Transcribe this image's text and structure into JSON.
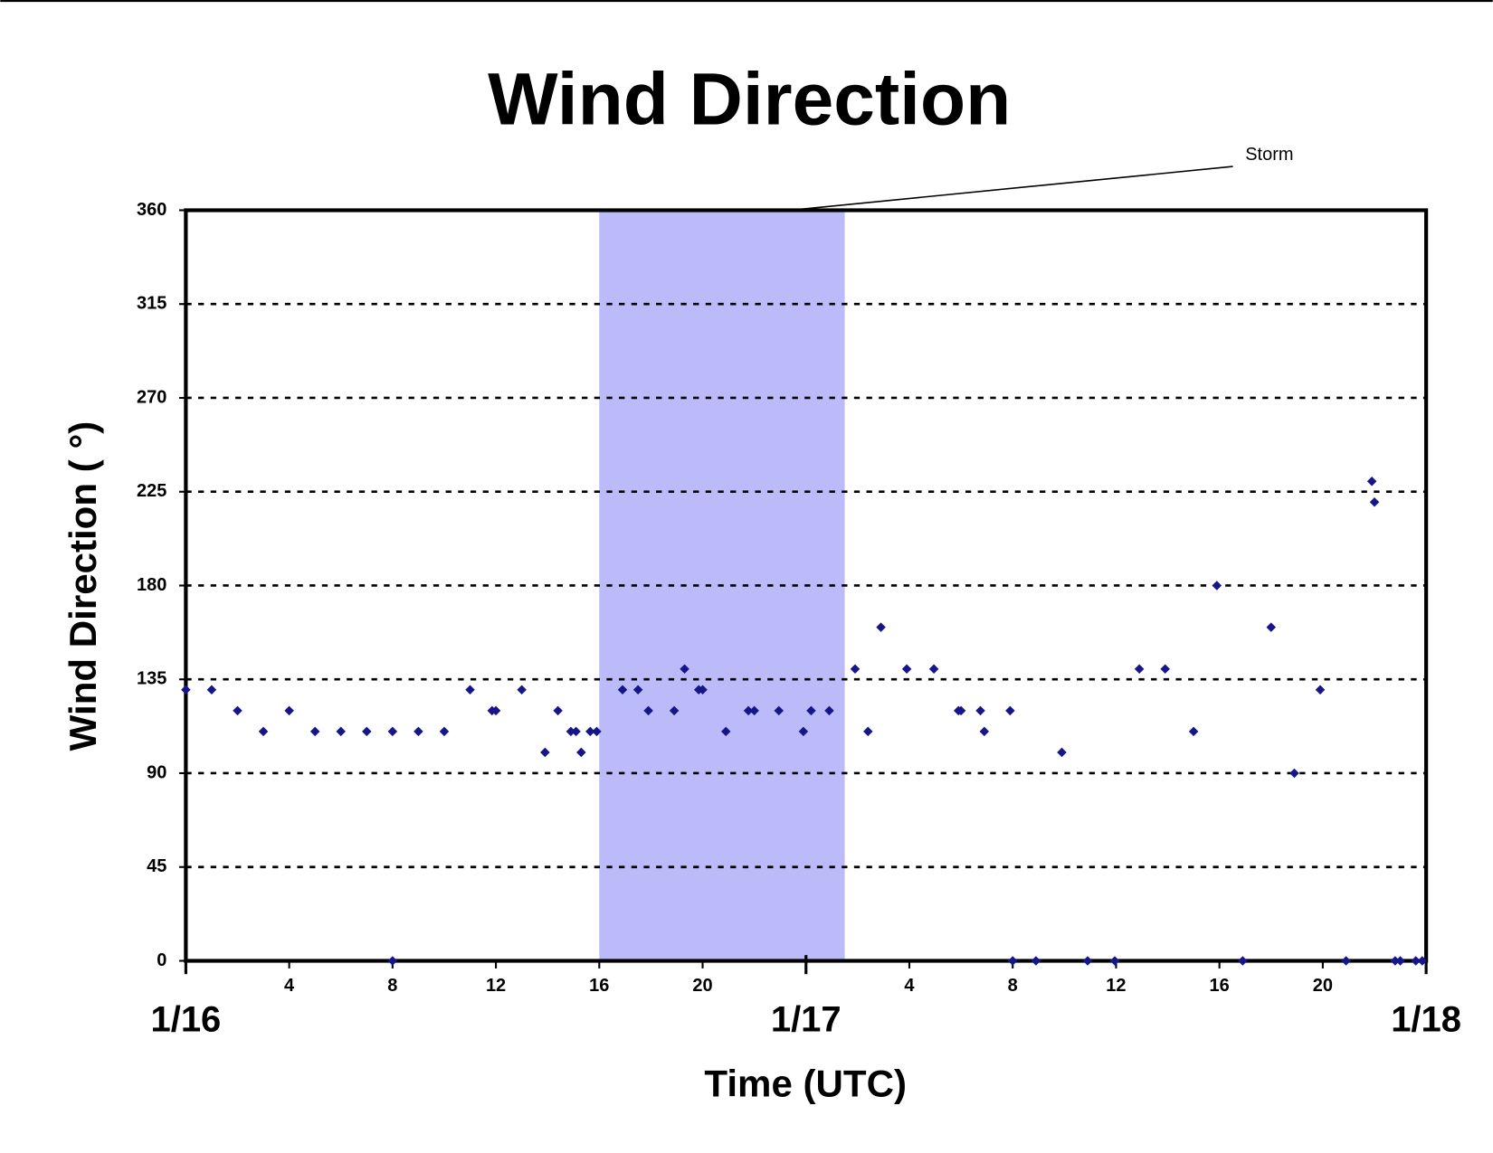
{
  "chart_data": {
    "type": "scatter",
    "title": "Wind Direction",
    "x_label": "Time (UTC)",
    "y_label": "Wind Direction ( °)",
    "annotation": "Storm",
    "storm_band": [
      16,
      25.5
    ],
    "band_color": "#bbbbf9",
    "color": "#16168a",
    "grid": true,
    "xlim": [
      0,
      48
    ],
    "ylim": [
      0,
      360
    ],
    "yticks": [
      0,
      45,
      90,
      135,
      180,
      225,
      270,
      315,
      360
    ],
    "xticks": [
      4,
      8,
      12,
      16,
      20,
      {
        "value": 28,
        "label": "4"
      },
      {
        "value": 32,
        "label": "8"
      },
      {
        "value": 36,
        "label": "12"
      },
      {
        "value": 40,
        "label": "16"
      },
      {
        "value": 44,
        "label": "20"
      }
    ],
    "xticks_major": [
      {
        "value": 0,
        "label": "1/16"
      },
      {
        "value": 24,
        "label": "1/17"
      },
      {
        "value": 48,
        "label": "1/18"
      }
    ],
    "x": [
      0,
      1,
      2,
      3,
      4,
      5,
      6,
      7,
      8,
      8,
      9,
      10,
      11,
      11.85,
      12,
      13,
      13.9,
      14.4,
      14.9,
      15.1,
      15.3,
      15.65,
      15.9,
      16.9,
      17.5,
      17.9,
      18.9,
      19.3,
      19.85,
      20,
      20.9,
      21.77,
      22,
      22.95,
      23.9,
      24.2,
      24.9,
      25.9,
      26.4,
      26.9,
      27.9,
      28.95,
      29.9,
      30,
      30.75,
      30.9,
      31.9,
      32,
      32.9,
      33.9,
      34.9,
      35.95,
      36.9,
      37.9,
      39,
      39.9,
      40.9,
      42,
      42.9,
      43.9,
      44.9,
      45.9,
      46,
      46.8,
      47,
      47.6,
      47.85
    ],
    "values": [
      130,
      130,
      120,
      110,
      120,
      110,
      110,
      110,
      110,
      0,
      110,
      110,
      130,
      120,
      120,
      130,
      100,
      120,
      110,
      110,
      100,
      110,
      110,
      130,
      130,
      120,
      120,
      140,
      130,
      130,
      110,
      120,
      120,
      120,
      110,
      120,
      120,
      140,
      110,
      160,
      140,
      140,
      120,
      120,
      120,
      110,
      120,
      0,
      0,
      100,
      0,
      0,
      140,
      140,
      110,
      180,
      0,
      160,
      90,
      130,
      0,
      230,
      220,
      0,
      0,
      0,
      0
    ]
  }
}
